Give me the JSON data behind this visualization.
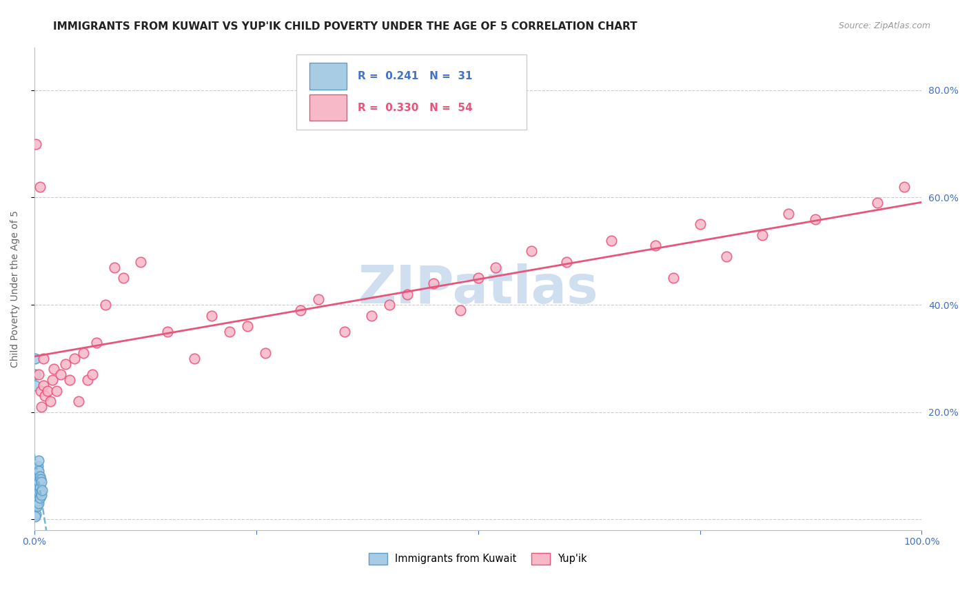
{
  "title": "IMMIGRANTS FROM KUWAIT VS YUP'IK CHILD POVERTY UNDER THE AGE OF 5 CORRELATION CHART",
  "source": "Source: ZipAtlas.com",
  "ylabel": "Child Poverty Under the Age of 5",
  "xlim": [
    0.0,
    1.0
  ],
  "ylim": [
    -0.02,
    0.88
  ],
  "ytick_positions": [
    0.0,
    0.2,
    0.4,
    0.6,
    0.8
  ],
  "ytick_labels": [
    "",
    "20.0%",
    "40.0%",
    "60.0%",
    "80.0%"
  ],
  "kuwait_R": 0.241,
  "kuwait_N": 31,
  "yupik_R": 0.33,
  "yupik_N": 54,
  "kuwait_color": "#a8cce4",
  "kuwait_edge_color": "#5b9ec9",
  "yupik_color": "#f7b8c8",
  "yupik_edge_color": "#e8547a",
  "kuwait_line_color": "#7ab3d4",
  "yupik_line_color": "#e8547a",
  "kuwait_x": [
    0.001,
    0.001,
    0.001,
    0.002,
    0.002,
    0.002,
    0.002,
    0.002,
    0.003,
    0.003,
    0.003,
    0.003,
    0.003,
    0.004,
    0.004,
    0.004,
    0.004,
    0.005,
    0.005,
    0.005,
    0.005,
    0.005,
    0.006,
    0.006,
    0.006,
    0.007,
    0.007,
    0.008,
    0.008,
    0.009,
    0.001
  ],
  "kuwait_y": [
    0.3,
    0.27,
    0.25,
    0.08,
    0.06,
    0.04,
    0.025,
    0.01,
    0.095,
    0.075,
    0.055,
    0.04,
    0.025,
    0.1,
    0.08,
    0.06,
    0.035,
    0.11,
    0.09,
    0.07,
    0.05,
    0.03,
    0.08,
    0.06,
    0.04,
    0.075,
    0.05,
    0.07,
    0.045,
    0.055,
    0.005
  ],
  "yupik_x": [
    0.002,
    0.005,
    0.006,
    0.007,
    0.008,
    0.01,
    0.01,
    0.012,
    0.015,
    0.018,
    0.02,
    0.022,
    0.025,
    0.03,
    0.035,
    0.04,
    0.045,
    0.05,
    0.055,
    0.06,
    0.065,
    0.07,
    0.08,
    0.09,
    0.1,
    0.12,
    0.15,
    0.18,
    0.2,
    0.22,
    0.24,
    0.26,
    0.3,
    0.32,
    0.35,
    0.38,
    0.4,
    0.42,
    0.45,
    0.48,
    0.5,
    0.52,
    0.56,
    0.6,
    0.65,
    0.7,
    0.72,
    0.75,
    0.78,
    0.82,
    0.85,
    0.88,
    0.95,
    0.98
  ],
  "yupik_y": [
    0.7,
    0.27,
    0.62,
    0.24,
    0.21,
    0.3,
    0.25,
    0.23,
    0.24,
    0.22,
    0.26,
    0.28,
    0.24,
    0.27,
    0.29,
    0.26,
    0.3,
    0.22,
    0.31,
    0.26,
    0.27,
    0.33,
    0.4,
    0.47,
    0.45,
    0.48,
    0.35,
    0.3,
    0.38,
    0.35,
    0.36,
    0.31,
    0.39,
    0.41,
    0.35,
    0.38,
    0.4,
    0.42,
    0.44,
    0.39,
    0.45,
    0.47,
    0.5,
    0.48,
    0.52,
    0.51,
    0.45,
    0.55,
    0.49,
    0.53,
    0.57,
    0.56,
    0.59,
    0.62
  ],
  "background_color": "#ffffff",
  "grid_color": "#cccccc",
  "title_fontsize": 11,
  "axis_label_fontsize": 10,
  "tick_fontsize": 10,
  "watermark_text": "ZIPatlas",
  "watermark_color": "#d0dff0",
  "watermark_fontsize": 55
}
